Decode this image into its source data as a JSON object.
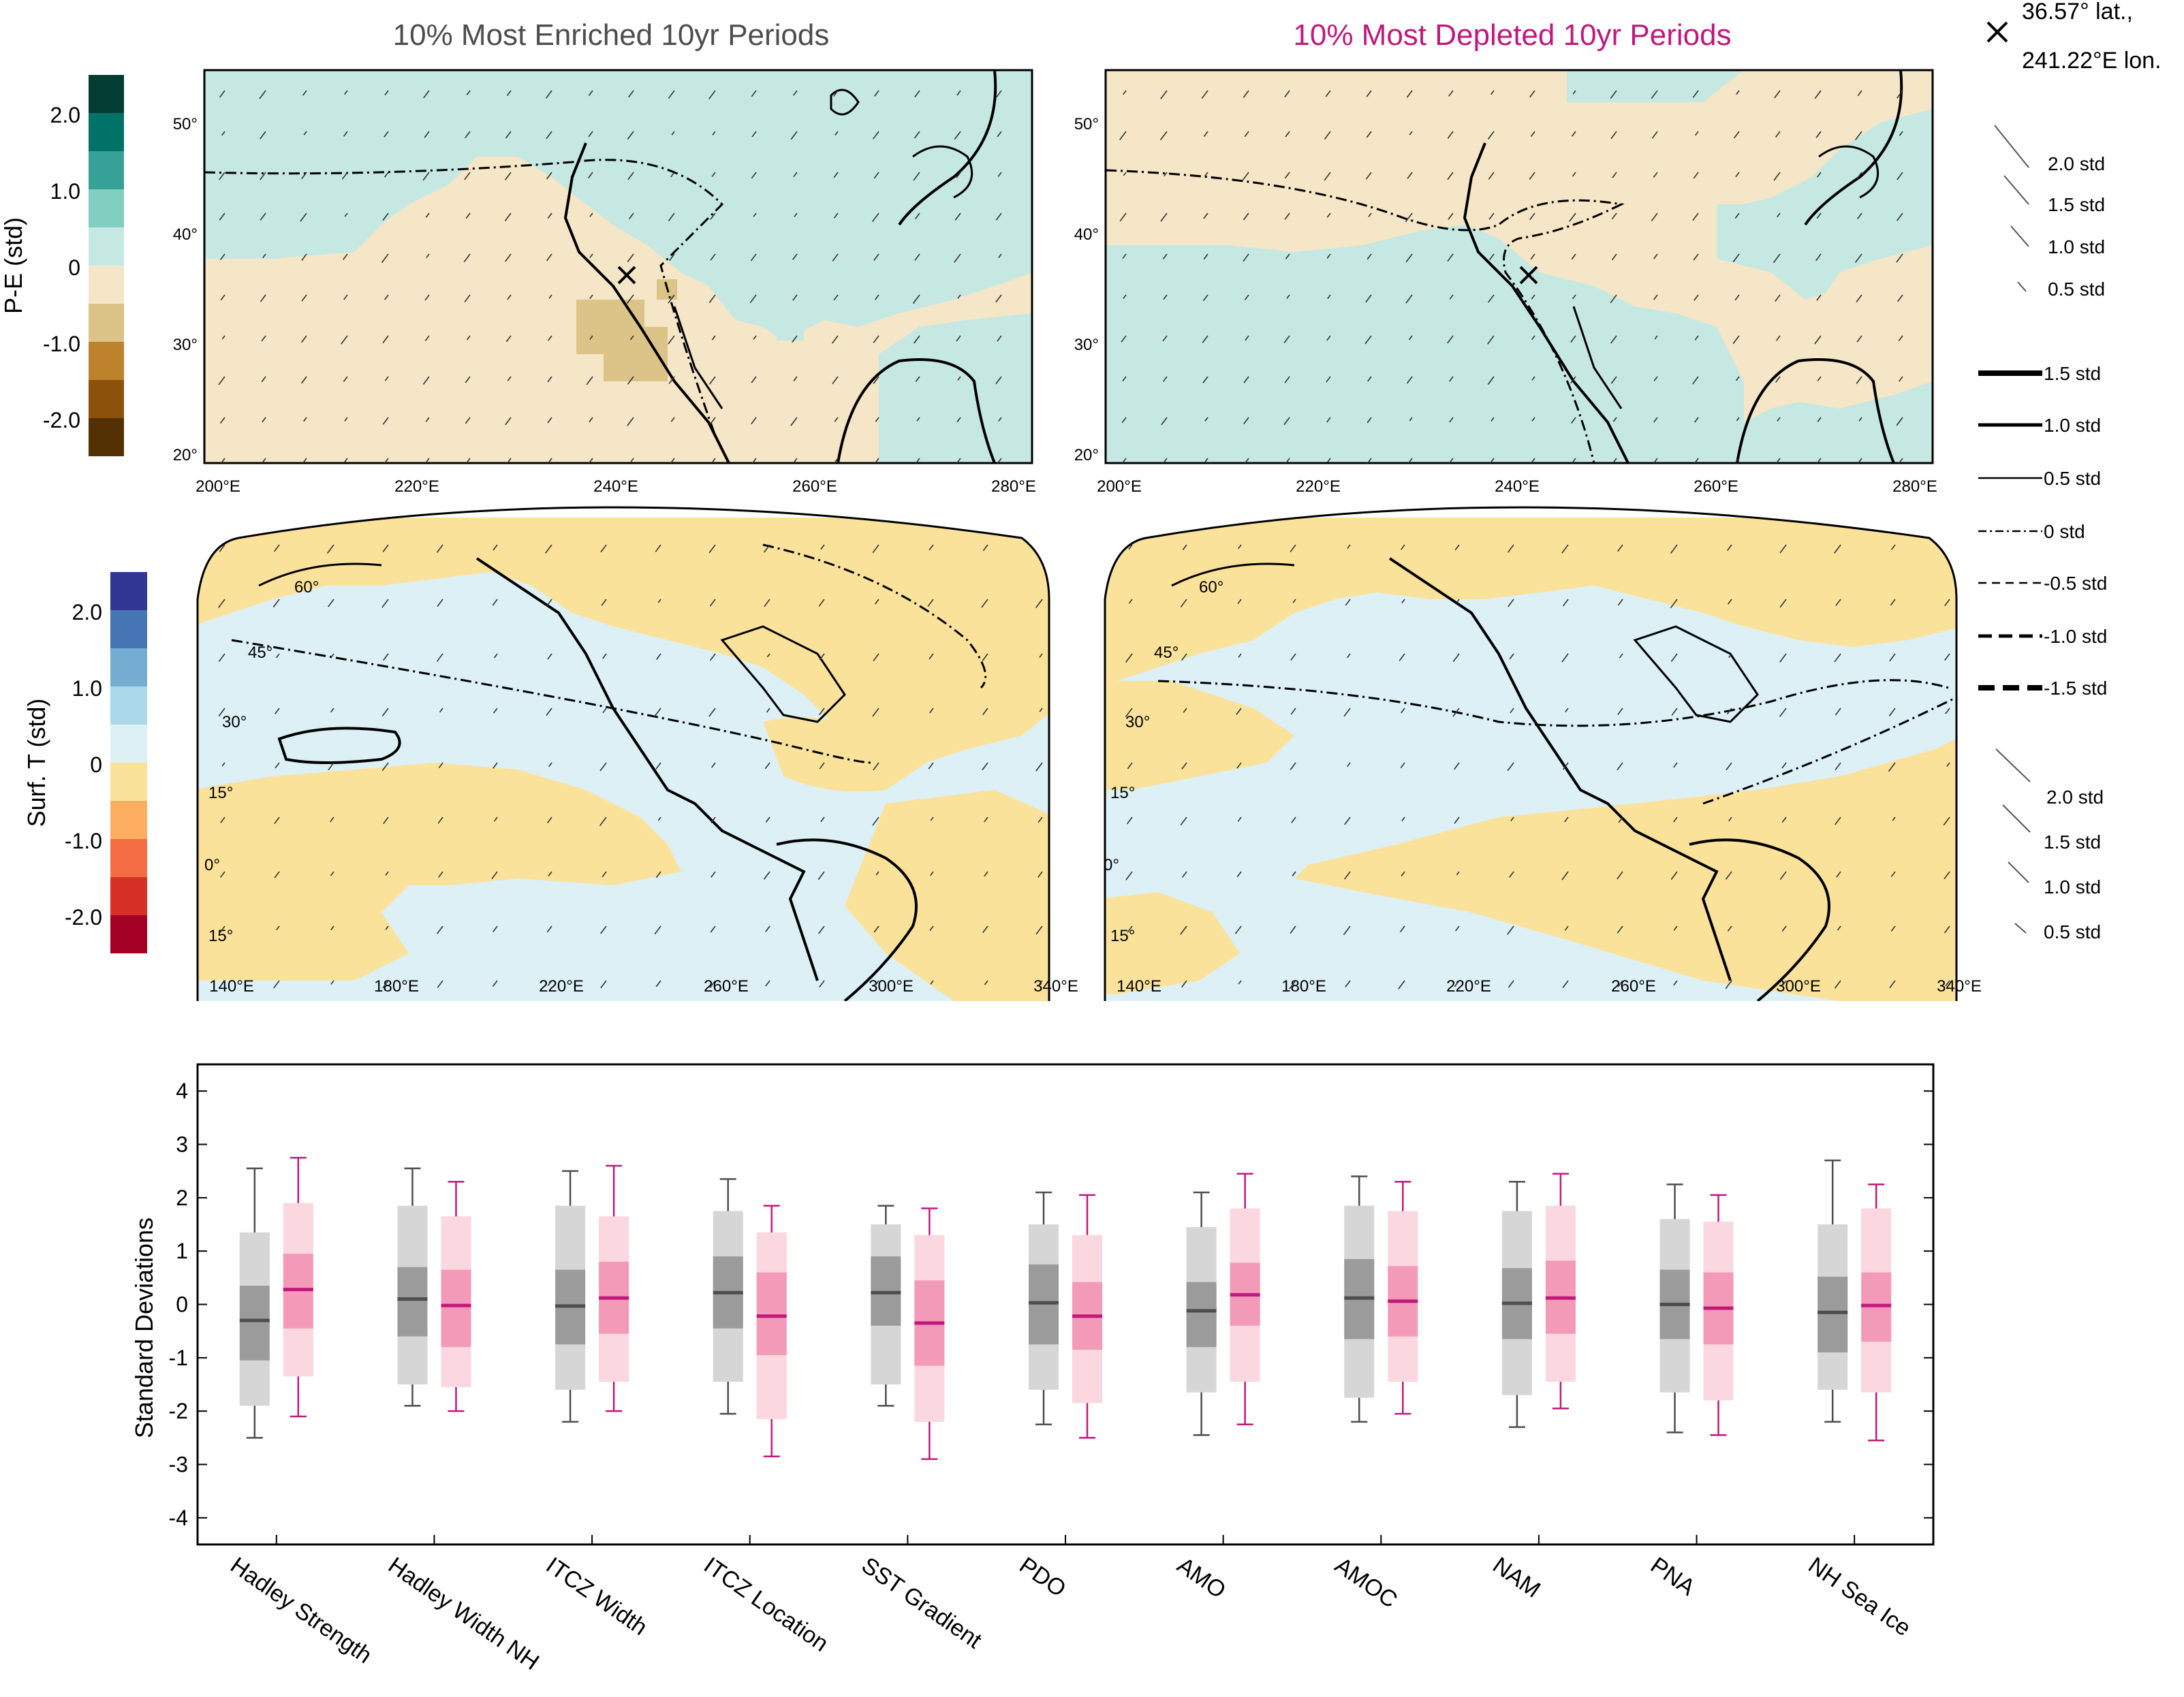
{
  "titles": {
    "enriched": "10% Most Enriched 10yr Periods",
    "depleted": "10% Most Depleted 10yr Periods"
  },
  "location": {
    "line1": "36.57° lat.,",
    "line2": "241.22°E lon."
  },
  "colorbars": {
    "pe": {
      "label": "P-E (std)",
      "ticks": [
        "2.0",
        "1.0",
        "0",
        "-1.0",
        "-2.0"
      ]
    },
    "temp": {
      "label": "Surf. T (std)",
      "ticks": [
        "2.0",
        "1.0",
        "0",
        "-1.0",
        "-2.0"
      ]
    }
  },
  "region_map": {
    "lon_ticks": [
      "200°E",
      "220°E",
      "240°E",
      "260°E",
      "280°E"
    ],
    "lat_ticks": [
      "50°",
      "40°",
      "30°",
      "20°"
    ]
  },
  "global_map": {
    "lon_ticks": [
      "140°E",
      "180°E",
      "220°E",
      "260°E",
      "300°E",
      "340°E"
    ],
    "lat_ticks": [
      "60°",
      "45°",
      "30°",
      "15°",
      "0°",
      "15°"
    ]
  },
  "legend": {
    "vectors_top": [
      "2.0 std",
      "1.5 std",
      "1.0 std",
      "0.5 std"
    ],
    "contours": [
      "1.5 std",
      "1.0 std",
      "0.5 std",
      "0 std",
      "-0.5 std",
      "-1.0 std",
      "-1.5 std"
    ],
    "vectors_bottom": [
      "2.0 std",
      "1.5 std",
      "1.0 std",
      "0.5 std"
    ]
  },
  "colors": {
    "enriched_dark": "#4d4d4d",
    "enriched_mid": "#9b9b9b",
    "enriched_light": "#d6d6d6",
    "depleted_dark": "#c0187c",
    "depleted_mid": "#f49ab9",
    "depleted_light": "#fbd7df",
    "pe_wet": "#c6e8e3",
    "pe_dry": "#f4e6c6",
    "pe_dry2": "#dcc387",
    "t_warm": "#fbe29b",
    "t_cool": "#dcf0f6"
  },
  "chart_data": {
    "type": "box",
    "ylabel": "Standard Deviations",
    "ylim": [
      -4.5,
      4.5
    ],
    "yticks": [
      4,
      3,
      2,
      1,
      0,
      -1,
      -2,
      -3,
      -4
    ],
    "categories": [
      "Hadley Strength",
      "Hadley Width NH",
      "ITCZ Width",
      "ITCZ Location",
      "SST Gradient",
      "PDO",
      "AMO",
      "AMOC",
      "NAM",
      "PNA",
      "NH Sea Ice"
    ],
    "series": [
      {
        "whisker_low": [
          -2.5,
          -1.9,
          -2.2,
          -2.05,
          -1.9,
          -2.25,
          -2.45,
          -2.2,
          -2.3,
          -2.4,
          -2.2
        ],
        "p10": [
          -1.9,
          -1.5,
          -1.6,
          -1.45,
          -1.5,
          -1.6,
          -1.65,
          -1.75,
          -1.7,
          -1.65,
          -1.6
        ],
        "q1": [
          -1.05,
          -0.6,
          -0.75,
          -0.45,
          -0.4,
          -0.75,
          -0.8,
          -0.65,
          -0.65,
          -0.65,
          -0.9
        ],
        "median": [
          -0.3,
          0.1,
          -0.03,
          0.22,
          0.22,
          0.03,
          -0.12,
          0.12,
          0.02,
          0.0,
          -0.15
        ],
        "q3": [
          0.35,
          0.7,
          0.65,
          0.9,
          0.9,
          0.75,
          0.42,
          0.85,
          0.68,
          0.65,
          0.52
        ],
        "p90": [
          1.35,
          1.85,
          1.85,
          1.75,
          1.5,
          1.5,
          1.45,
          1.85,
          1.75,
          1.6,
          1.5
        ],
        "whisker_high": [
          2.55,
          2.55,
          2.5,
          2.35,
          1.85,
          2.1,
          2.1,
          2.4,
          2.3,
          2.25,
          2.7
        ]
      },
      {
        "whisker_low": [
          -2.1,
          -2.0,
          -2.0,
          -2.85,
          -2.9,
          -2.5,
          -2.25,
          -2.05,
          -1.95,
          -2.45,
          -2.55
        ],
        "p10": [
          -1.35,
          -1.55,
          -1.45,
          -2.15,
          -2.2,
          -1.85,
          -1.45,
          -1.45,
          -1.45,
          -1.8,
          -1.65
        ],
        "q1": [
          -0.45,
          -0.8,
          -0.55,
          -0.95,
          -1.15,
          -0.85,
          -0.4,
          -0.6,
          -0.55,
          -0.75,
          -0.7
        ],
        "median": [
          0.28,
          -0.02,
          0.12,
          -0.22,
          -0.35,
          -0.22,
          0.18,
          0.06,
          0.12,
          -0.07,
          -0.02
        ],
        "q3": [
          0.95,
          0.65,
          0.8,
          0.6,
          0.45,
          0.42,
          0.78,
          0.72,
          0.82,
          0.6,
          0.6
        ],
        "p90": [
          1.9,
          1.65,
          1.65,
          1.35,
          1.3,
          1.3,
          1.8,
          1.75,
          1.85,
          1.55,
          1.8
        ],
        "whisker_high": [
          2.75,
          2.3,
          2.6,
          1.85,
          1.8,
          2.05,
          2.45,
          2.3,
          2.45,
          2.05,
          2.25
        ]
      }
    ]
  }
}
